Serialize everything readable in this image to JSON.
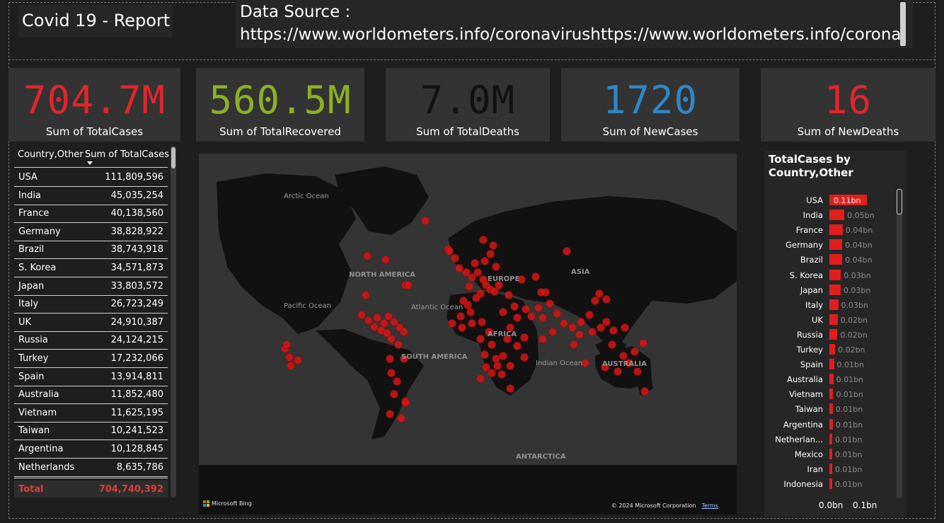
{
  "header": {
    "title": "Covid 19 - Report",
    "source_line1": "Data Source :",
    "source_line2": "https://www.worldometers.info/coronavirushttps://www.worldometers.info/corona"
  },
  "kpis": [
    {
      "value": "704.7M",
      "label": "Sum of TotalCases",
      "color": "#e0262a"
    },
    {
      "value": "560.5M",
      "label": "Sum of TotalRecovered",
      "color": "#8bb024"
    },
    {
      "value": "7.0M",
      "label": "Sum of TotalDeaths",
      "color": "#111111"
    },
    {
      "value": "1720",
      "label": "Sum of NewCases",
      "color": "#2f86c6"
    },
    {
      "value": "16",
      "label": "Sum of NewDeaths",
      "color": "#e0262a"
    }
  ],
  "table": {
    "col1": "Country,Other",
    "col2": "Sum of TotalCases",
    "rows": [
      {
        "country": "USA",
        "cases": "111,809,596"
      },
      {
        "country": "India",
        "cases": "45,035,254"
      },
      {
        "country": "France",
        "cases": "40,138,560"
      },
      {
        "country": "Germany",
        "cases": "38,828,922"
      },
      {
        "country": "Brazil",
        "cases": "38,743,918"
      },
      {
        "country": "S. Korea",
        "cases": "34,571,873"
      },
      {
        "country": "Japan",
        "cases": "33,803,572"
      },
      {
        "country": "Italy",
        "cases": "26,723,249"
      },
      {
        "country": "UK",
        "cases": "24,910,387"
      },
      {
        "country": "Russia",
        "cases": "24,124,215"
      },
      {
        "country": "Turkey",
        "cases": "17,232,066"
      },
      {
        "country": "Spain",
        "cases": "13,914,811"
      },
      {
        "country": "Australia",
        "cases": "11,852,480"
      },
      {
        "country": "Vietnam",
        "cases": "11,625,195"
      },
      {
        "country": "Taiwan",
        "cases": "10,241,523"
      },
      {
        "country": "Argentina",
        "cases": "10,128,845"
      },
      {
        "country": "Netherlands",
        "cases": "8,635,786"
      }
    ],
    "total_label": "Total",
    "total_value": "704,740,392"
  },
  "map": {
    "labels": {
      "arctic": "Arctic Ocean",
      "north_america": "NORTH AMERICA",
      "asia": "ASIA",
      "europe": "EUROPE",
      "pacific": "Pacific Ocean",
      "atlantic": "Atlantic Ocean",
      "africa": "AFRICA",
      "south_america": "SOUTH AMERICA",
      "indian": "Indian Ocean",
      "australia": "AUSTRALIA",
      "antarctica": "ANTARCTICA"
    },
    "bing": "Microsoft Bing",
    "copyright": "© 2024 Microsoft Corporation",
    "terms": "Terms",
    "bubble_color": "#d41616"
  },
  "chart_data": {
    "type": "bar",
    "title": "TotalCases by Country,Other",
    "orientation": "horizontal",
    "categories": [
      "USA",
      "India",
      "France",
      "Germany",
      "Brazil",
      "S. Korea",
      "Japan",
      "Italy",
      "UK",
      "Russia",
      "Turkey",
      "Spain",
      "Australia",
      "Vietnam",
      "Taiwan",
      "Argentina",
      "Netherlan...",
      "Mexico",
      "Iran",
      "Indonesia"
    ],
    "values": [
      0.1118,
      0.045,
      0.0401,
      0.0388,
      0.0387,
      0.0346,
      0.0338,
      0.0267,
      0.0249,
      0.0241,
      0.0172,
      0.0139,
      0.0119,
      0.0116,
      0.0102,
      0.0101,
      0.0086,
      0.0076,
      0.0076,
      0.0068
    ],
    "data_labels": [
      "0.11bn",
      "0.05bn",
      "0.04bn",
      "0.04bn",
      "0.04bn",
      "0.03bn",
      "0.03bn",
      "0.03bn",
      "0.02bn",
      "0.02bn",
      "0.02bn",
      "0.01bn",
      "0.01bn",
      "0.01bn",
      "0.01bn",
      "0.01bn",
      "0.01bn",
      "0.01bn",
      "0.01bn",
      "0.01bn"
    ],
    "x_ticks": [
      "0.0bn",
      "0.1bn"
    ],
    "xlim": [
      0,
      0.1
    ],
    "color": "#e01e1e"
  }
}
